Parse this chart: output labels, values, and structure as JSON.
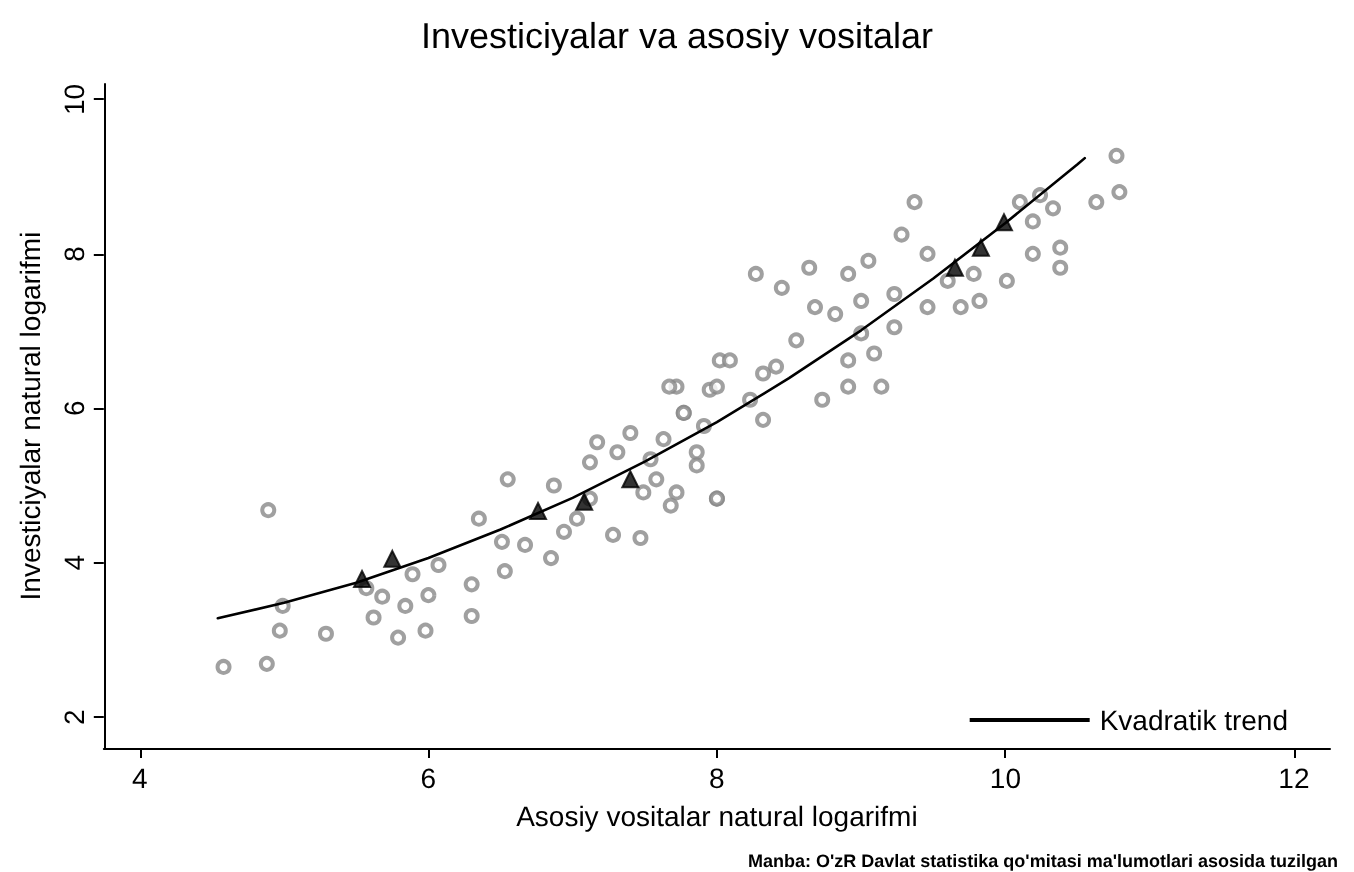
{
  "chart_data": {
    "type": "scatter",
    "title": "Investiciyalar va asosiy vositalar",
    "xlabel": "Asosiy vositalar natural logarifmi",
    "ylabel": "Investiciyalar natural logarifmi",
    "annotations": [
      "Manba: O'zR Davlat statistika qo'mitasi ma'lumotlari asosida tuzilgan"
    ],
    "xlim": [
      3.75,
      12.25
    ],
    "xticks": [
      4,
      6,
      8,
      10,
      12
    ],
    "ylim": [
      1.6,
      10.2
    ],
    "yticks": [
      2,
      4,
      6,
      8,
      10
    ],
    "grid": false,
    "legend": "bottom right",
    "series": [
      {
        "marker": "circle",
        "color": "#888888",
        "x": [
          4.58,
          4.88,
          4.89,
          4.99,
          4.97,
          5.29,
          5.57,
          5.68,
          5.62,
          5.79,
          5.84,
          5.98,
          6.0,
          6.3,
          5.89,
          6.07,
          6.3,
          6.53,
          6.55,
          6.35,
          6.51,
          6.67,
          6.87,
          6.85,
          7.12,
          7.17,
          7.31,
          7.28,
          7.47,
          7.4,
          7.54,
          7.72,
          7.77,
          7.68,
          7.86,
          8.0,
          8.02,
          7.95,
          7.03,
          6.94,
          7.12,
          7.49,
          7.58,
          7.63,
          7.67,
          7.77,
          7.86,
          7.72,
          8.0,
          8.0,
          8.09,
          8.23,
          8.32,
          8.41,
          8.27,
          8.45,
          8.55,
          8.73,
          8.68,
          8.64,
          8.82,
          8.91,
          9.0,
          8.91,
          9.0,
          9.09,
          9.05,
          9.28,
          9.37,
          9.46,
          9.46,
          9.23,
          9.69,
          9.82,
          9.78,
          9.6,
          10.01,
          10.1,
          10.19,
          10.33,
          10.38,
          10.38,
          10.19,
          10.24,
          10.63,
          10.79,
          10.77,
          9.14,
          8.91,
          9.23,
          8.32,
          7.91
        ],
        "values": [
          2.65,
          2.69,
          4.68,
          3.44,
          3.12,
          3.08,
          3.67,
          3.56,
          3.29,
          3.03,
          3.44,
          3.12,
          3.58,
          3.31,
          3.85,
          3.97,
          3.72,
          3.89,
          5.08,
          4.57,
          4.27,
          4.23,
          5.0,
          4.06,
          5.3,
          5.56,
          5.43,
          4.36,
          4.32,
          5.68,
          5.34,
          6.28,
          5.94,
          4.74,
          5.43,
          4.83,
          6.62,
          6.24,
          4.57,
          4.4,
          4.83,
          4.91,
          5.08,
          5.6,
          6.28,
          5.94,
          5.26,
          4.91,
          4.83,
          6.28,
          6.62,
          6.11,
          6.45,
          6.54,
          7.74,
          7.56,
          6.88,
          6.11,
          7.31,
          7.82,
          7.22,
          7.74,
          7.39,
          6.28,
          6.97,
          6.71,
          7.91,
          8.25,
          8.67,
          8.0,
          7.31,
          7.48,
          7.31,
          7.39,
          7.74,
          7.65,
          7.65,
          8.67,
          8.42,
          8.59,
          8.08,
          7.82,
          8.0,
          8.76,
          8.67,
          8.8,
          9.27,
          6.28,
          6.62,
          7.05,
          5.85,
          5.77
        ]
      },
      {
        "type": "scatter",
        "marker": "triangle",
        "color": "#000000",
        "x": [
          5.54,
          5.75,
          6.76,
          7.08,
          7.4,
          9.65,
          9.83,
          9.99
        ],
        "values": [
          3.79,
          4.05,
          4.67,
          4.79,
          5.08,
          7.82,
          8.08,
          8.41
        ]
      },
      {
        "type": "line",
        "name": "Kvadratik trend",
        "marker": "none",
        "line_style": "solid",
        "color": "#000000",
        "x": [
          4.54,
          5.0,
          5.5,
          6.0,
          6.5,
          7.0,
          7.5,
          8.0,
          8.5,
          9.0,
          9.5,
          10.0,
          10.5,
          10.55
        ],
        "values": [
          3.28,
          3.48,
          3.74,
          4.06,
          4.43,
          4.84,
          5.31,
          5.82,
          6.39,
          7.01,
          7.68,
          8.4,
          9.16,
          9.24
        ]
      }
    ]
  }
}
